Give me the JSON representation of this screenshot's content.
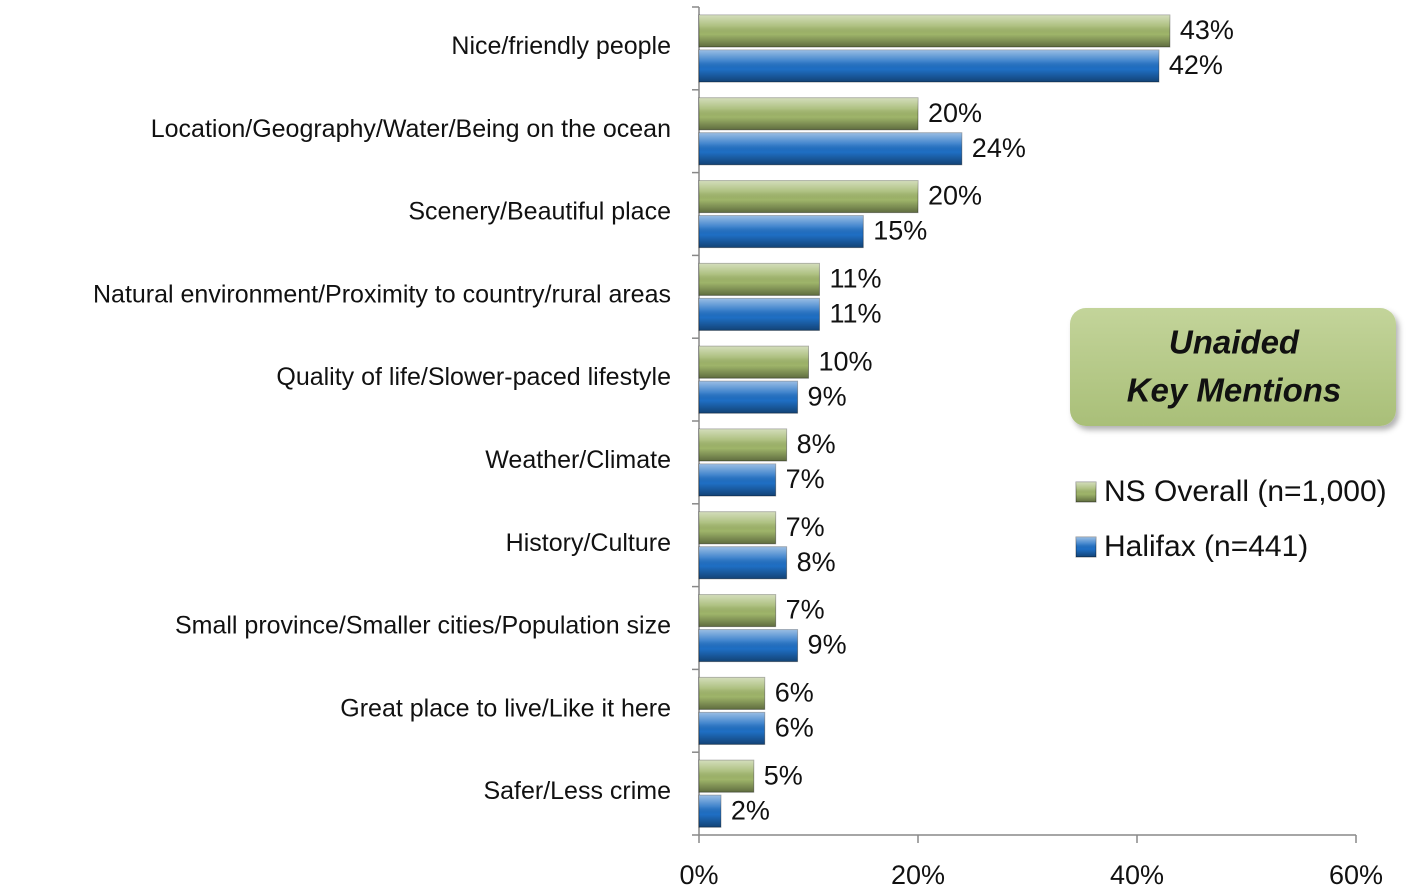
{
  "chart_data": {
    "type": "hbar",
    "categories": [
      "Nice/friendly people",
      "Location/Geography/Water/Being on the ocean",
      "Scenery/Beautiful place",
      "Natural environment/Proximity to country/rural areas",
      "Quality of life/Slower-paced lifestyle",
      "Weather/Climate",
      "History/Culture",
      "Small province/Smaller cities/Population size",
      "Great place to live/Like it here",
      "Safer/Less crime"
    ],
    "series": [
      {
        "name": "NS Overall (n=1,000)",
        "color": "#9fb56a",
        "values": [
          43,
          20,
          20,
          11,
          10,
          8,
          7,
          7,
          6,
          5
        ],
        "value_labels": [
          "43%",
          "20%",
          "20%",
          "11%",
          "10%",
          "8%",
          "7%",
          "7%",
          "6%",
          "5%"
        ]
      },
      {
        "name": "Halifax (n=441)",
        "color": "#1f6fc4",
        "values": [
          42,
          24,
          15,
          11,
          9,
          7,
          8,
          9,
          6,
          2
        ],
        "value_labels": [
          "42%",
          "24%",
          "15%",
          "11%",
          "9%",
          "7%",
          "8%",
          "9%",
          "6%",
          "2%"
        ]
      }
    ],
    "xlim": [
      0,
      60
    ],
    "xticks": [
      {
        "value": 0,
        "label": "0%"
      },
      {
        "value": 20,
        "label": "20%"
      },
      {
        "value": 40,
        "label": "40%"
      },
      {
        "value": 60,
        "label": "60%"
      }
    ],
    "annotation": [
      "Unaided",
      "Key Mentions"
    ]
  }
}
